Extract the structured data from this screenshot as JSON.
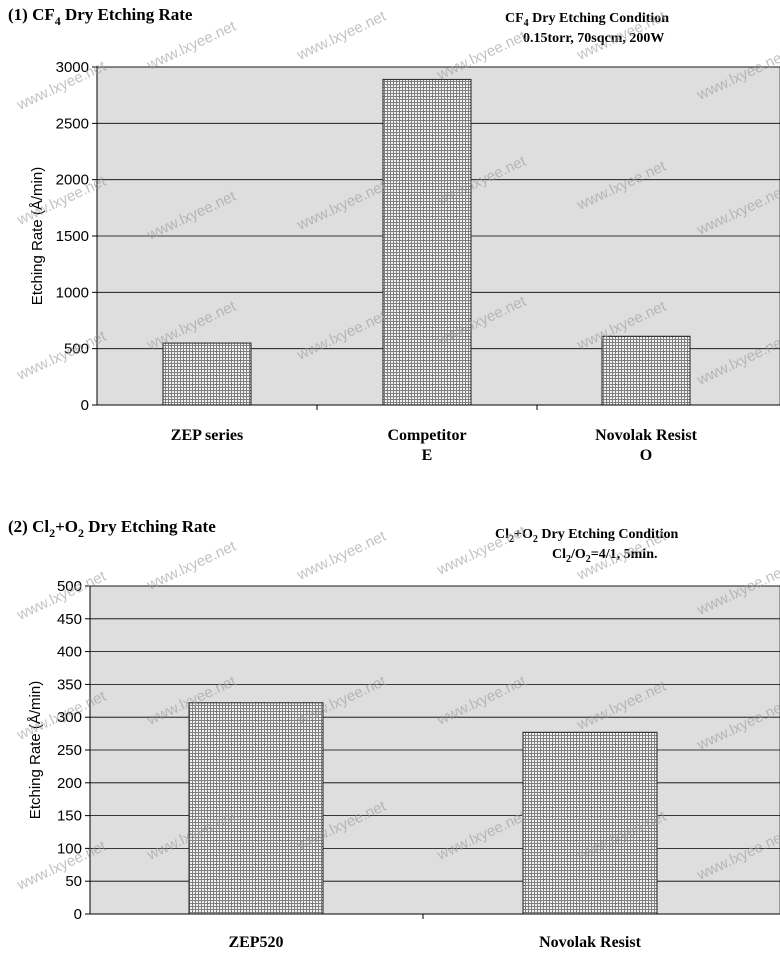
{
  "pattern_colors": {
    "bg": "#f2f2f2",
    "line": "#7f7f7f",
    "plot_bg": "#dedede",
    "bar_edge": "#222222"
  },
  "watermark": "www.lxyee.net",
  "chart_data": [
    {
      "type": "bar",
      "title_prefix": "(1) CF",
      "title_sub": "4",
      "title_rest": " Dry Etching Rate",
      "condition_line1_prefix": "CF",
      "condition_line1_sub": "4",
      "condition_line1_rest": " Dry Etching Condition",
      "condition_line2": "0.15torr, 70sqcm, 200W",
      "ylabel": "Etching Rate  (Å/min)",
      "ylim": [
        0,
        3000
      ],
      "yticks": [
        0,
        500,
        1000,
        1500,
        2000,
        2500,
        3000
      ],
      "categories": [
        "ZEP series",
        "Competitor E",
        "Novolak Resist O"
      ],
      "category_lines": [
        [
          "ZEP series"
        ],
        [
          "Competitor",
          "E"
        ],
        [
          "Novolak Resist",
          "O"
        ]
      ],
      "values": [
        550,
        2890,
        610
      ],
      "grid": true
    },
    {
      "type": "bar",
      "title_prefix": "(2) Cl",
      "title_sub": "2",
      "title_mid": "+O",
      "title_sub2": "2",
      "title_rest": " Dry Etching Rate",
      "condition_line1_prefix": "Cl",
      "condition_line1_sub": "2",
      "condition_line1_mid": "+O",
      "condition_line1_sub2": "2",
      "condition_line1_rest": " Dry Etching Condition",
      "condition_line2_prefix": "Cl",
      "condition_line2_sub": "2",
      "condition_line2_mid": "/O",
      "condition_line2_sub2": "2",
      "condition_line2_rest": "=4/1, 5min.",
      "ylabel": "Etching Rate  (Å/min)",
      "ylim": [
        0,
        500
      ],
      "yticks": [
        0,
        50,
        100,
        150,
        200,
        250,
        300,
        350,
        400,
        450,
        500
      ],
      "categories": [
        "ZEP520",
        "Novolak Resist"
      ],
      "category_lines": [
        [
          "ZEP520"
        ],
        [
          "Novolak Resist"
        ]
      ],
      "values": [
        322,
        277
      ],
      "grid": true
    }
  ]
}
